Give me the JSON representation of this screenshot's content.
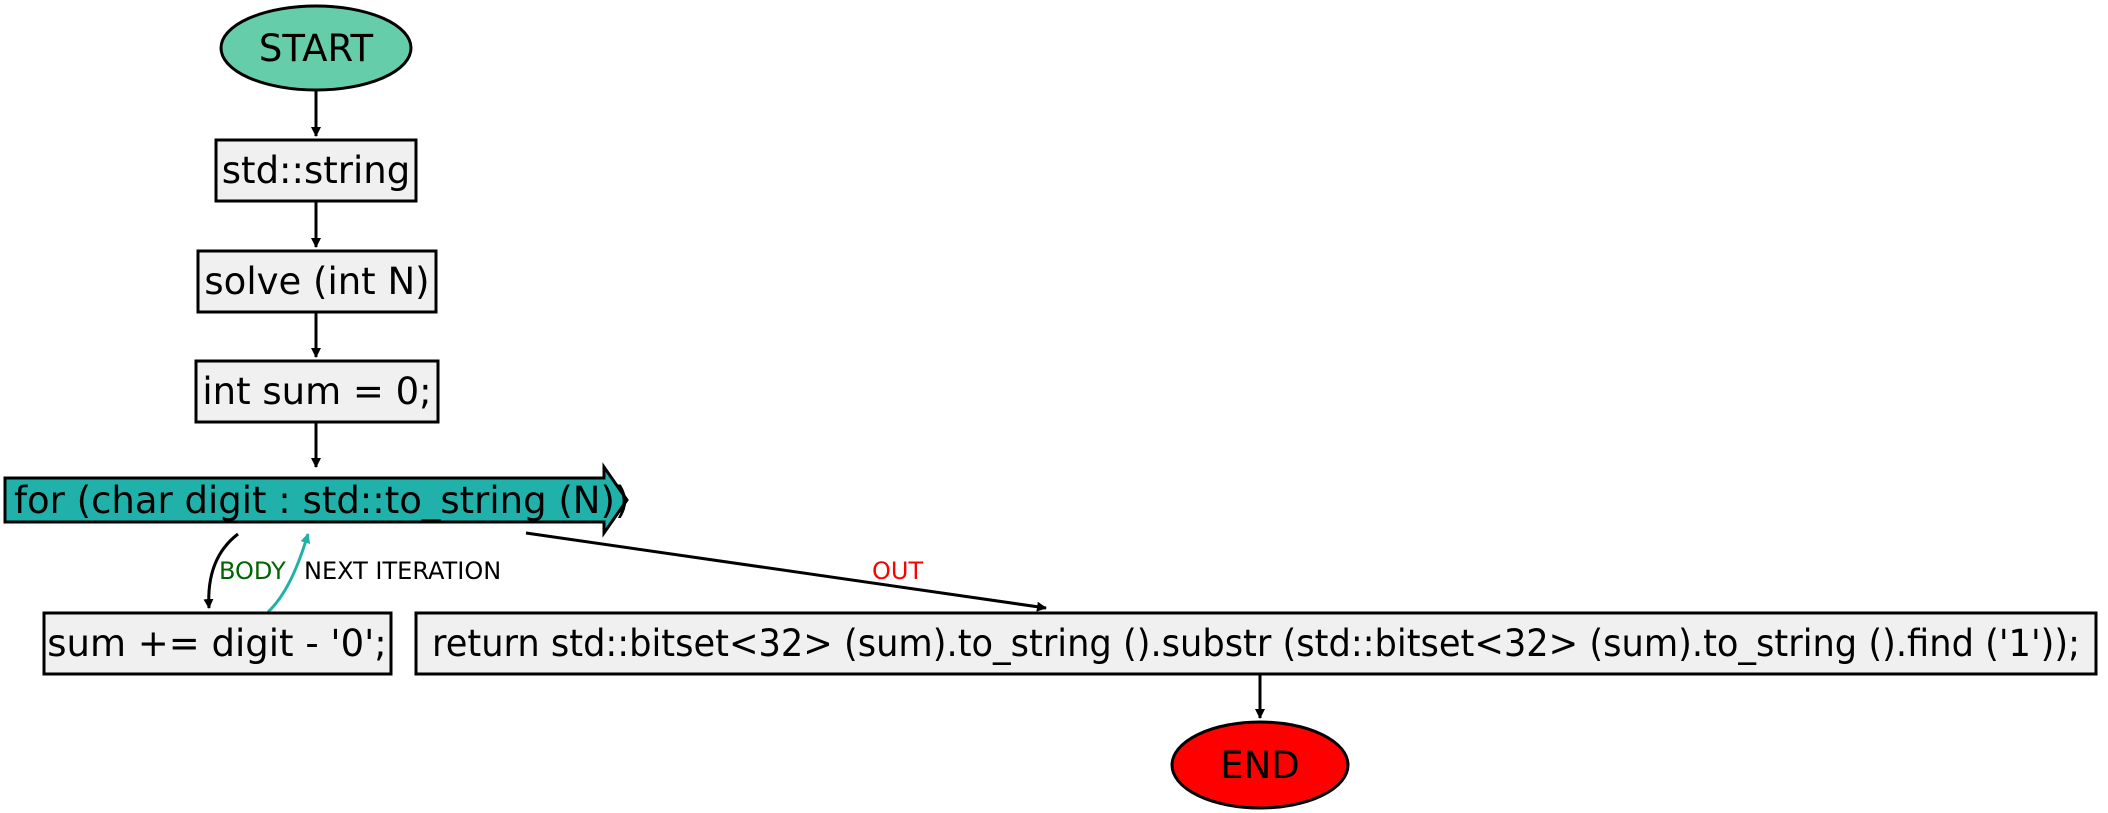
{
  "nodes": {
    "start": "START",
    "decl": "std::string",
    "func": "solve (int N)",
    "init": "int sum = 0;",
    "loop": "for (char digit : std::to_string (N))",
    "body": "sum += digit - '0';",
    "ret": "return std::bitset<32> (sum).to_string ().substr (std::bitset<32> (sum).to_string ().find ('1'));",
    "end": "END"
  },
  "edge_labels": {
    "body": "BODY",
    "next": "NEXT ITERATION",
    "out": "OUT"
  },
  "colors": {
    "start_fill": "#66cdaa",
    "end_fill": "#ff0000",
    "process_fill": "#f0f0f0",
    "loop_fill": "#20b2aa",
    "next_edge": "#20b2aa",
    "body_label": "#006400",
    "out_label": "#ff0000",
    "next_label": "#000000"
  }
}
